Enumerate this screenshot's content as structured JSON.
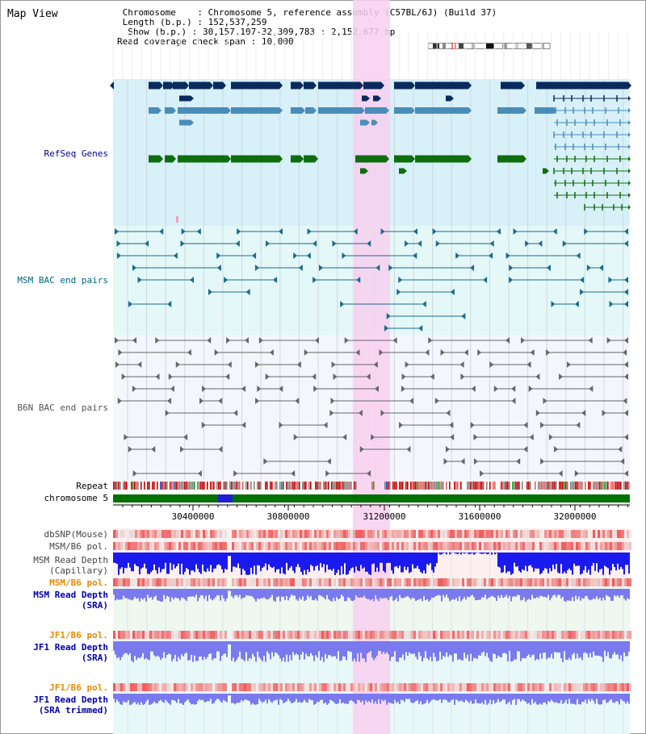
{
  "view_title": "Map View",
  "info": {
    "chromosome_key": "Chromosome",
    "chromosome_value": "Chromosome 5, reference assembly (C57BL/6J) (Build 37)",
    "length_key": "Length (b.p.)",
    "length_value": "152,537,259",
    "show_key": "Show (b.p.)",
    "show_value": "30,157,107-32,309,783 : 2,152,677 bp",
    "coverage_key": "Read coverage check span",
    "coverage_value": "10,000"
  },
  "track_labels": {
    "refseq": "RefSeq Genes",
    "msm_bac": "MSM BAC end pairs",
    "b6n_bac": "B6N BAC end pairs",
    "repeat": "Repeat",
    "chromosome": "chromosome 5",
    "dbsnp": "dbSNP(Mouse)",
    "msm_b6_pol": "MSM/B6 pol.",
    "msm_depth_cap_1": "MSM Read Depth",
    "msm_depth_cap_2": "(Capillary)",
    "msm_b6_pol_sra": "MSM/B6 pol.",
    "msm_depth_sra_1": "MSM Read Depth",
    "msm_depth_sra_2": "(SRA)",
    "jf1_b6_pol": "JF1/B6 pol.",
    "jf1_depth_1": "JF1 Read Depth",
    "jf1_depth_2": "(SRA)",
    "jf1_b6_pol_trim": "JF1/B6 pol.",
    "jf1_trim_1": "JF1 Read Depth",
    "jf1_trim_2": "(SRA trimmed)"
  },
  "axis": {
    "ticks": [
      "30400000",
      "30800000",
      "31200000",
      "31600000",
      "32000000"
    ]
  },
  "colors": {
    "highlight": "#f8d0f0",
    "refseq_bg": "#d8f0f8",
    "msm_bg": "#e4f8f8",
    "b6n_bg": "#f4f6fc",
    "gene_dark": "#0a2a5e",
    "gene_mid": "#4a8db8",
    "gene_green": "#0e6e0e",
    "chrom_green": "#007000",
    "depth_blue": "#1a1aee",
    "depth_light": "#7a7aee"
  }
}
